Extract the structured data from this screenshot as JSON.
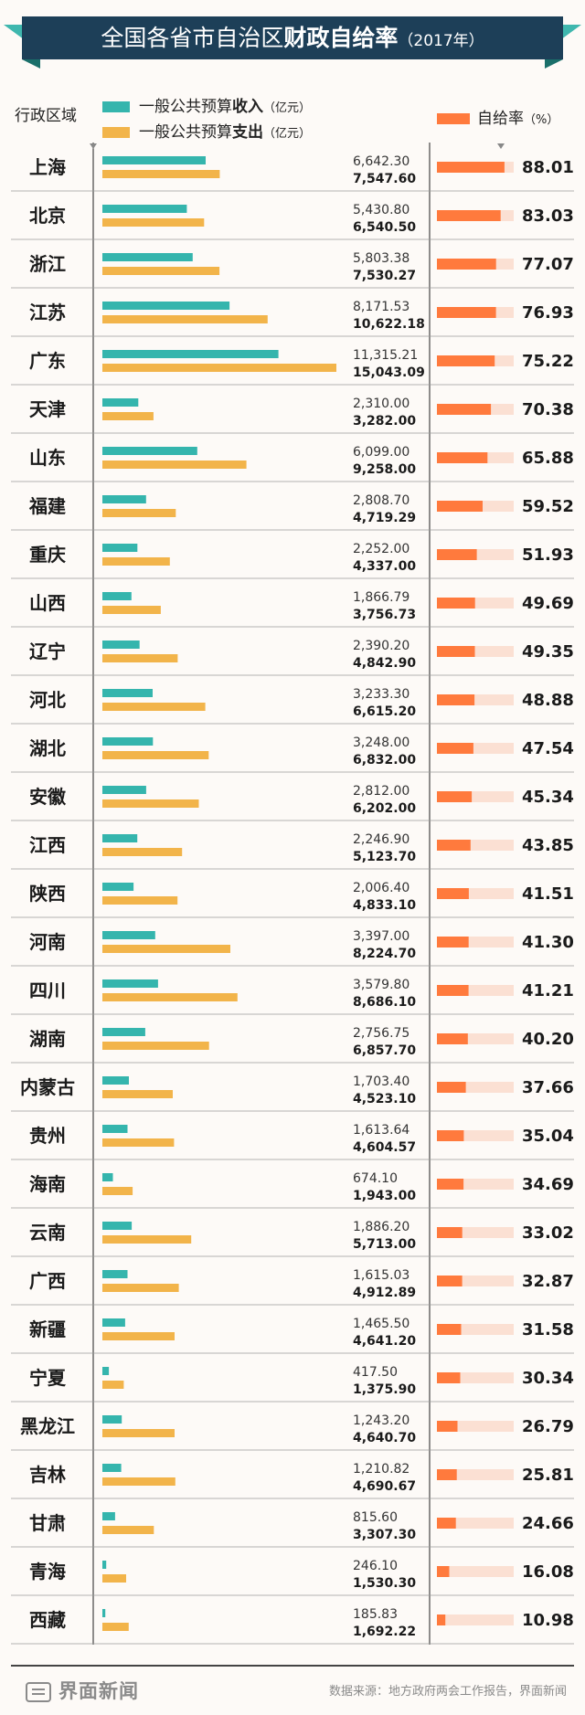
{
  "header": {
    "title_regular": "全国各省市自治区",
    "title_bold": "财政自给率",
    "title_year": "（2017年）"
  },
  "columns": {
    "region_label": "行政区域"
  },
  "legend": {
    "revenue_label": "一般公共预算",
    "revenue_bold": "收入",
    "spending_label": "一般公共预算",
    "spending_bold": "支出",
    "unit": "（亿元）",
    "ratio_label": "自给率",
    "ratio_unit": "（%）"
  },
  "colors": {
    "ribbon": "#1d3f58",
    "ribbon_fold": "#3fb7ae",
    "revenue": "#35b5ad",
    "spending": "#f2b44a",
    "ratio": "#ff7a3d",
    "ratio_track": "#fbe0d3",
    "divider": "#444444"
  },
  "chart_data": {
    "type": "bar",
    "ratio_max": 100,
    "categories": [
      "上海",
      "北京",
      "浙江",
      "江苏",
      "广东",
      "天津",
      "山东",
      "福建",
      "重庆",
      "山西",
      "辽宁",
      "河北",
      "湖北",
      "安徽",
      "江西",
      "陕西",
      "河南",
      "四川",
      "湖南",
      "内蒙古",
      "贵州",
      "海南",
      "云南",
      "广西",
      "新疆",
      "宁夏",
      "黑龙江",
      "吉林",
      "甘肃",
      "青海",
      "西藏"
    ],
    "series": [
      {
        "name": "一般公共预算收入",
        "values": [
          6642.3,
          5430.8,
          5803.38,
          8171.53,
          11315.21,
          2310.0,
          6099.0,
          2808.7,
          2252.0,
          1866.79,
          2390.2,
          3233.3,
          3248.0,
          2812.0,
          2246.9,
          2006.4,
          3397.0,
          3579.8,
          2756.75,
          1703.4,
          1613.64,
          674.1,
          1886.2,
          1615.03,
          1465.5,
          417.5,
          1243.2,
          1210.82,
          815.6,
          246.1,
          185.83
        ],
        "labels": [
          "6,642.30",
          "5,430.80",
          "5,803.38",
          "8,171.53",
          "11,315.21",
          "2,310.00",
          "6,099.00",
          "2,808.70",
          "2,252.00",
          "1,866.79",
          "2,390.20",
          "3,233.30",
          "3,248.00",
          "2,812.00",
          "2,246.90",
          "2,006.40",
          "3,397.00",
          "3,579.80",
          "2,756.75",
          "1,703.40",
          "1,613.64",
          "674.10",
          "1,886.20",
          "1,615.03",
          "1,465.50",
          "417.50",
          "1,243.20",
          "1,210.82",
          "815.60",
          "246.10",
          "185.83"
        ]
      },
      {
        "name": "一般公共预算支出",
        "values": [
          7547.6,
          6540.5,
          7530.27,
          10622.18,
          15043.09,
          3282.0,
          9258.0,
          4719.29,
          4337.0,
          3756.73,
          4842.9,
          6615.2,
          6832.0,
          6202.0,
          5123.7,
          4833.1,
          8224.7,
          8686.1,
          6857.7,
          4523.1,
          4604.57,
          1943.0,
          5713.0,
          4912.89,
          4641.2,
          1375.9,
          4640.7,
          4690.67,
          3307.3,
          1530.3,
          1692.22
        ],
        "labels": [
          "7,547.60",
          "6,540.50",
          "7,530.27",
          "10,622.18",
          "15,043.09",
          "3,282.00",
          "9,258.00",
          "4,719.29",
          "4,337.00",
          "3,756.73",
          "4,842.90",
          "6,615.20",
          "6,832.00",
          "6,202.00",
          "5,123.70",
          "4,833.10",
          "8,224.70",
          "8,686.10",
          "6,857.70",
          "4,523.10",
          "4,604.57",
          "1,943.00",
          "5,713.00",
          "4,912.89",
          "4,641.20",
          "1,375.90",
          "4,640.70",
          "4,690.67",
          "3,307.30",
          "1,530.30",
          "1,692.22"
        ]
      },
      {
        "name": "自给率",
        "values": [
          88.01,
          83.03,
          77.07,
          76.93,
          75.22,
          70.38,
          65.88,
          59.52,
          51.93,
          49.69,
          49.35,
          48.88,
          47.54,
          45.34,
          43.85,
          41.51,
          41.3,
          41.21,
          40.2,
          37.66,
          35.04,
          34.69,
          33.02,
          32.87,
          31.58,
          30.34,
          26.79,
          25.81,
          24.66,
          16.08,
          10.98
        ],
        "labels": [
          "88.01",
          "83.03",
          "77.07",
          "76.93",
          "75.22",
          "70.38",
          "65.88",
          "59.52",
          "51.93",
          "49.69",
          "49.35",
          "48.88",
          "47.54",
          "45.34",
          "43.85",
          "41.51",
          "41.30",
          "41.21",
          "40.20",
          "37.66",
          "35.04",
          "34.69",
          "33.02",
          "32.87",
          "31.58",
          "30.34",
          "26.79",
          "25.81",
          "24.66",
          "16.08",
          "10.98"
        ]
      }
    ]
  },
  "footer": {
    "logo_text": "界面新闻",
    "source": "数据来源：地方政府两会工作报告，界面新闻"
  }
}
